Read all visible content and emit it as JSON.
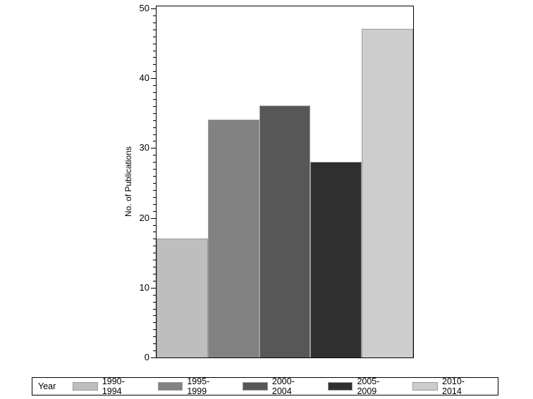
{
  "chart_data": {
    "type": "bar",
    "title": "",
    "xlabel": "",
    "ylabel": "No. of Publications",
    "ylim": [
      0,
      50
    ],
    "yticks": [
      0,
      10,
      20,
      30,
      40,
      50
    ],
    "grid": false,
    "legend_position": "bottom",
    "legend_title": "Year",
    "categories": [
      "1990-1994",
      "1995-1999",
      "2000-2004",
      "2005-2009",
      "2010-2014"
    ],
    "values": [
      17,
      34,
      36,
      28,
      47
    ],
    "colors": [
      "#bebebe",
      "#828282",
      "#575757",
      "#2f2f2f",
      "#cdcdcd"
    ]
  },
  "legend": {
    "title": "Year",
    "items": [
      {
        "label": "1990-1994",
        "color": "#bebebe"
      },
      {
        "label": "1995-1999",
        "color": "#828282"
      },
      {
        "label": "2000-2004",
        "color": "#575757"
      },
      {
        "label": "2005-2009",
        "color": "#2f2f2f"
      },
      {
        "label": "2010-2014",
        "color": "#cdcdcd"
      }
    ]
  },
  "axis": {
    "ylabel": "No. of Publications",
    "ticks": [
      "0",
      "10",
      "20",
      "30",
      "40",
      "50"
    ]
  }
}
